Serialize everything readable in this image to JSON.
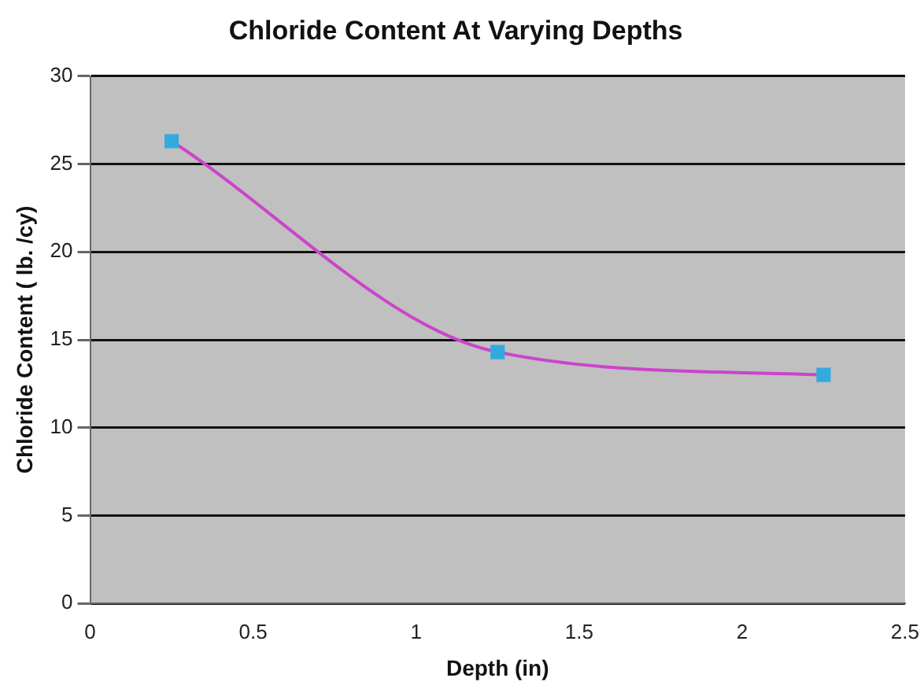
{
  "chart_data": {
    "type": "line",
    "title": "Chloride Content At Varying Depths",
    "xlabel": "Depth (in)",
    "ylabel": "Chloride Content ( lb. /cy)",
    "x": [
      0.25,
      1.25,
      2.25
    ],
    "series": [
      {
        "color": "#cc44cc",
        "colors": [
          "#33aadd",
          "#33aadd",
          "#33aadd"
        ],
        "values": [
          26.3,
          14.3,
          13
        ]
      }
    ],
    "xlim": [
      0,
      2.5
    ],
    "xticks": [
      0,
      0.5,
      1,
      1.5,
      2,
      2.5
    ],
    "ylim": [
      0,
      30
    ],
    "yticks": [
      0,
      5,
      10,
      15,
      20,
      25,
      30
    ],
    "grid": "y",
    "legend": false,
    "marker": "square"
  }
}
